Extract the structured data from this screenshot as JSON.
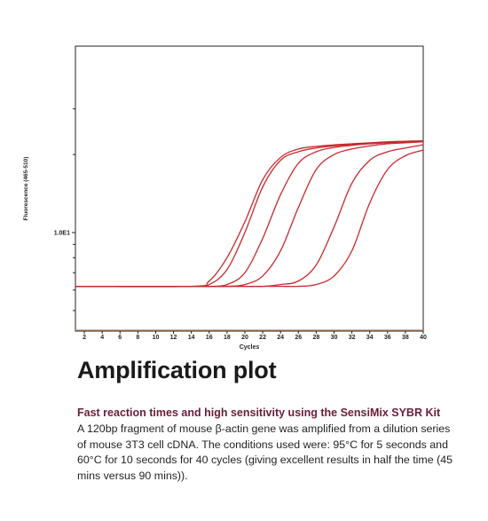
{
  "chart_data": {
    "type": "line",
    "title": "",
    "xlabel": "Cycles",
    "ylabel": "Fluorescence (465-510)",
    "xlim": [
      1,
      40
    ],
    "x_ticks": [
      2,
      4,
      6,
      8,
      10,
      12,
      14,
      16,
      18,
      20,
      22,
      24,
      26,
      28,
      30,
      32,
      34,
      36,
      38,
      40
    ],
    "y_scale": "log",
    "y_tick_labels": [
      "1.0E1"
    ],
    "grid": false,
    "legend": "none",
    "line_color": "#c8282d",
    "threshold_color": "#c08a6a",
    "threshold_level": 4.2,
    "baseline": 6.2,
    "plateau": 22.5,
    "x": [
      1,
      14,
      16,
      18,
      20,
      22,
      24,
      26,
      28,
      30,
      32,
      34,
      36,
      38,
      40
    ],
    "series": [
      {
        "values": [
          6.2,
          6.2,
          6.5,
          8.0,
          11.0,
          16.0,
          19.5,
          21.0,
          21.5,
          21.8,
          22.0,
          22.2,
          22.4,
          22.5,
          22.6
        ]
      },
      {
        "values": [
          6.2,
          6.2,
          6.3,
          7.2,
          10.0,
          15.0,
          19.0,
          20.5,
          21.2,
          21.6,
          21.9,
          22.1,
          22.3,
          22.4,
          22.5
        ]
      },
      {
        "values": [
          6.2,
          6.2,
          6.2,
          6.3,
          7.0,
          9.5,
          14.0,
          18.5,
          20.5,
          21.3,
          21.7,
          22.0,
          22.2,
          22.4,
          22.5
        ]
      },
      {
        "values": [
          6.2,
          6.2,
          6.2,
          6.2,
          6.3,
          6.8,
          8.5,
          12.5,
          17.5,
          20.0,
          21.0,
          21.6,
          22.0,
          22.2,
          22.4
        ]
      },
      {
        "values": [
          6.2,
          6.2,
          6.2,
          6.2,
          6.2,
          6.2,
          6.3,
          6.5,
          7.5,
          10.5,
          15.5,
          19.0,
          20.5,
          21.2,
          21.8
        ]
      },
      {
        "values": [
          6.2,
          6.2,
          6.2,
          6.2,
          6.2,
          6.2,
          6.2,
          6.2,
          6.3,
          6.8,
          8.5,
          13.0,
          17.5,
          19.8,
          20.8
        ]
      }
    ]
  },
  "caption": {
    "title": "Amplification plot",
    "subtitle": "Fast reaction times and high sensitivity using the SensiMix SYBR Kit",
    "body": "A 120bp fragment of mouse β-actin gene was amplified from a dilution series of mouse 3T3 cell cDNA. The conditions used were: 95°C for 5 seconds and 60°C for 10 seconds for 40 cycles (giving excellent results in half the time (45 mins versus 90 mins))."
  }
}
